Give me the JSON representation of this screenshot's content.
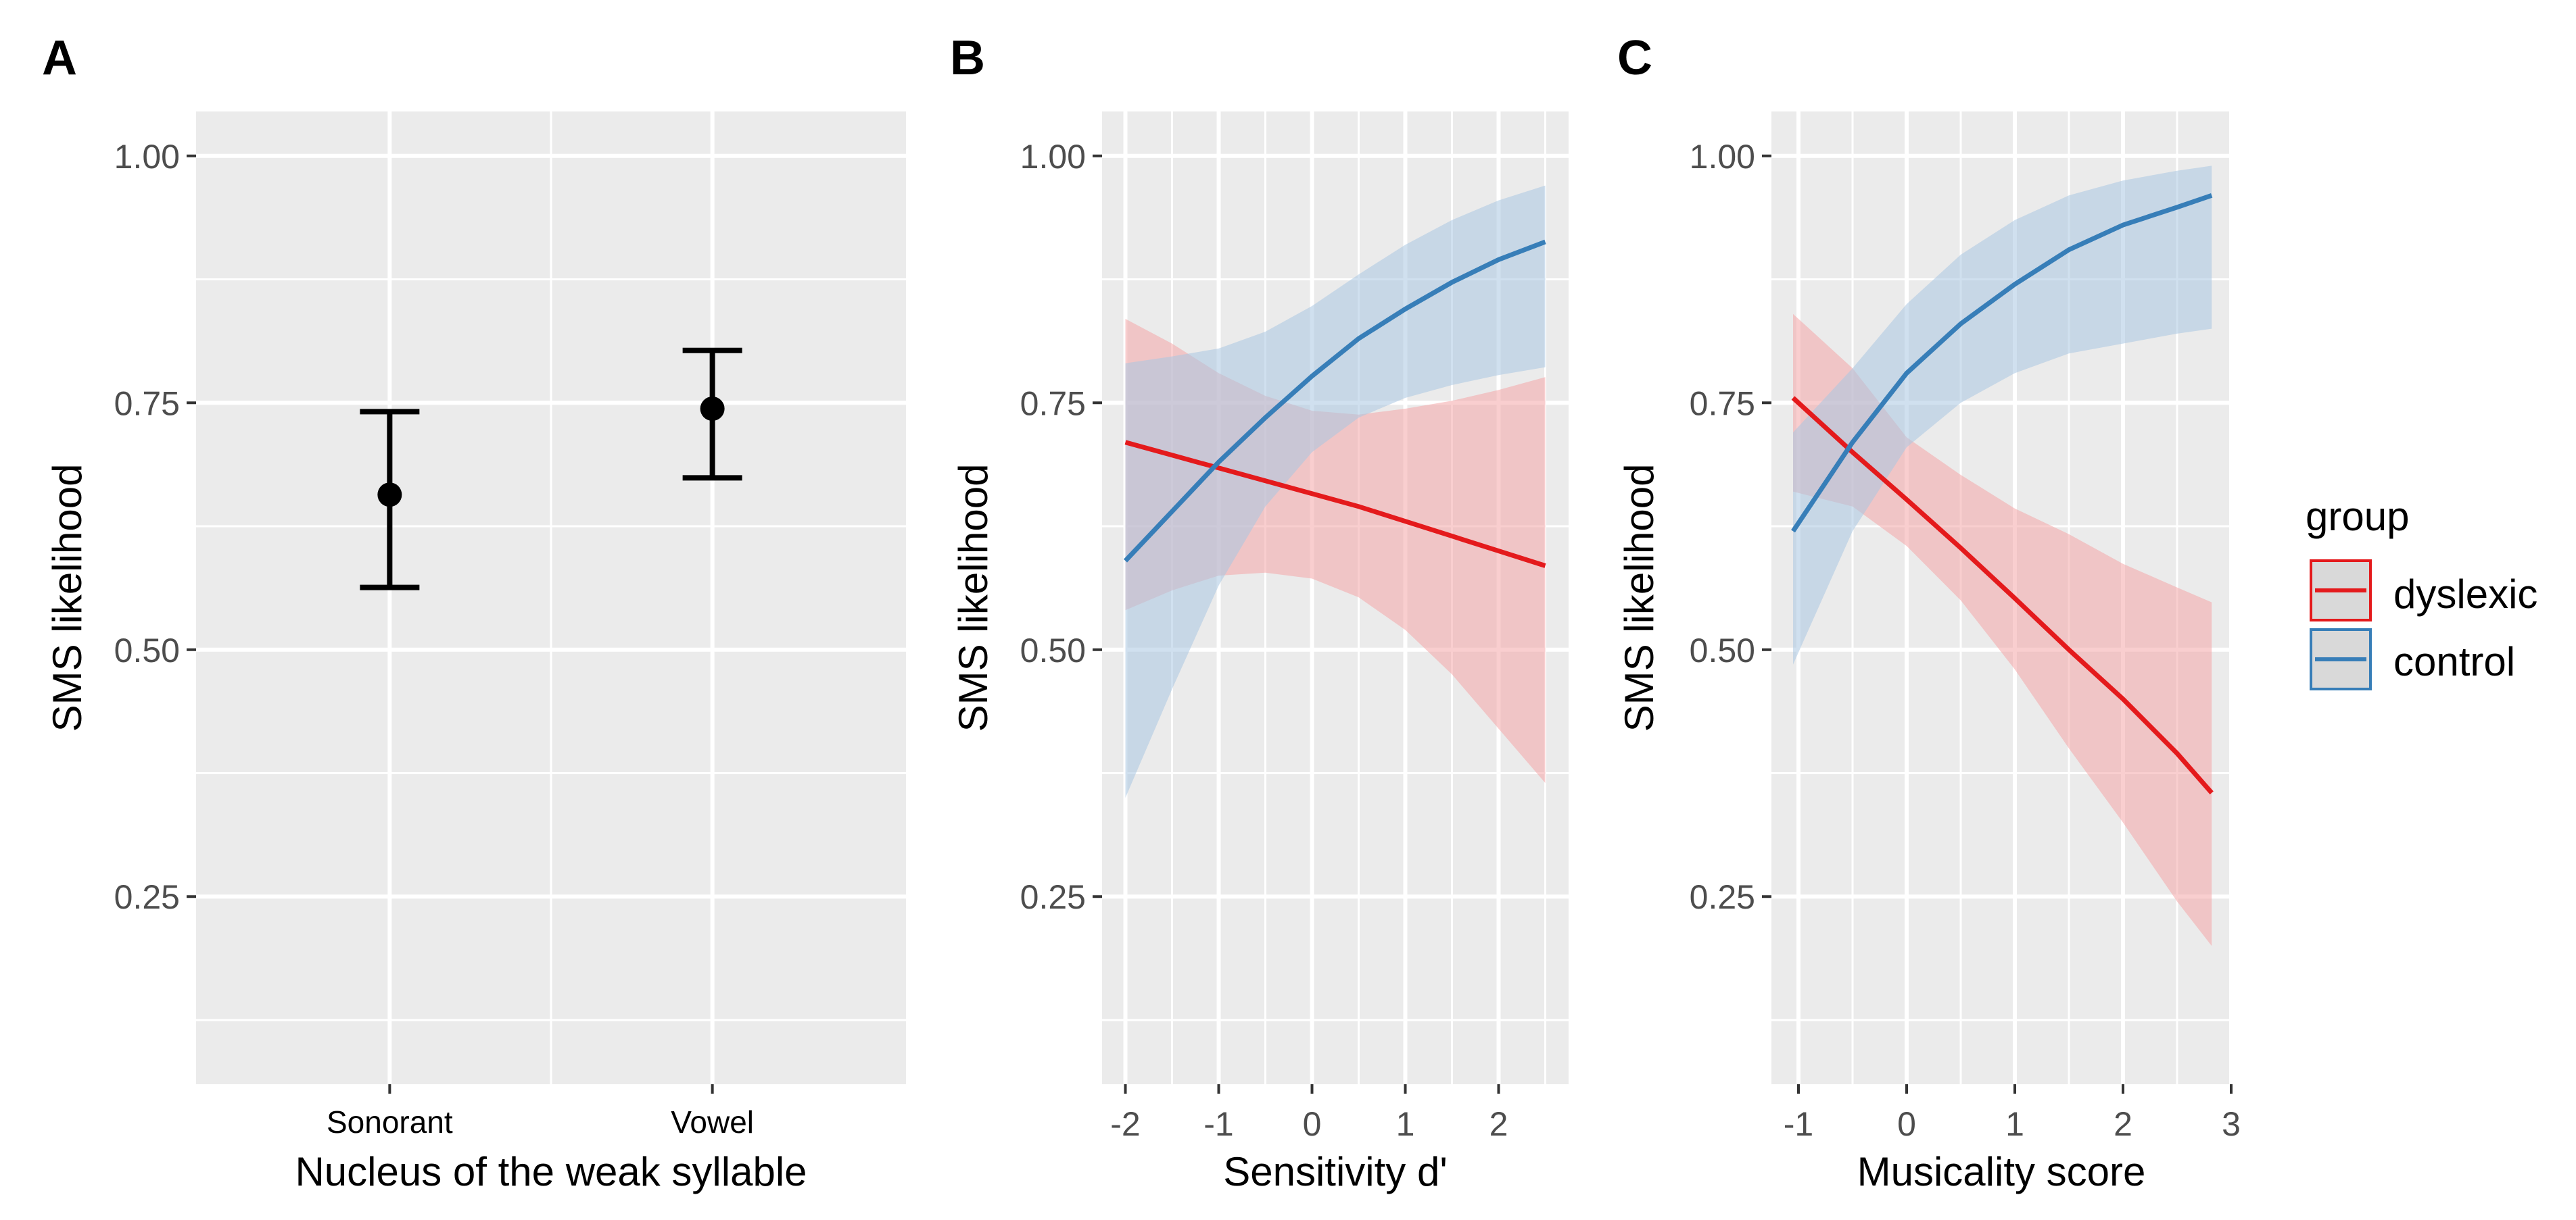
{
  "colors": {
    "panel_bg": "#EBEBEB",
    "grid": "#FFFFFF",
    "axis_text": "#4D4D4D",
    "title_text": "#000000",
    "dyslexic": "#E41A1C",
    "control": "#377EB8",
    "dyslexic_fill": "#F4A6A7",
    "control_fill": "#A9C6E1"
  },
  "legend": {
    "title": "group",
    "placement": "right",
    "entries": [
      {
        "label": "dyslexic",
        "series": "dyslexic"
      },
      {
        "label": "control",
        "series": "control"
      }
    ]
  },
  "chart_data": [
    {
      "panel_label": "A",
      "type": "scatter",
      "subtype": "point-with-errorbars",
      "xlabel": "Nucleus of the weak syllable",
      "ylabel": "SMS likelihood",
      "categories": [
        "Sonorant",
        "Vowel"
      ],
      "points": [
        {
          "category": "Sonorant",
          "y": 0.657,
          "ymin": 0.563,
          "ymax": 0.741
        },
        {
          "category": "Vowel",
          "y": 0.744,
          "ymin": 0.674,
          "ymax": 0.803
        }
      ],
      "ylim": [
        0.06,
        1.045
      ],
      "yticks": [
        0.25,
        0.5,
        0.75,
        1.0
      ],
      "ytick_labels": [
        "0.25",
        "0.50",
        "0.75",
        "1.00"
      ],
      "grid": true
    },
    {
      "panel_label": "B",
      "type": "line",
      "subtype": "line-with-ribbon",
      "xlabel": "Sensitivity d'",
      "ylabel": "SMS likelihood",
      "xlim": [
        -2.25,
        2.75
      ],
      "ylim": [
        0.06,
        1.045
      ],
      "xticks": [
        -2,
        -1,
        0,
        1,
        2
      ],
      "xtick_labels": [
        "-2",
        "-1",
        "0",
        "1",
        "2"
      ],
      "yticks": [
        0.25,
        0.5,
        0.75,
        1.0
      ],
      "ytick_labels": [
        "0.25",
        "0.50",
        "0.75",
        "1.00"
      ],
      "grid": true,
      "series": [
        {
          "name": "dyslexic",
          "x": [
            -2,
            -1.5,
            -1,
            -0.5,
            0,
            0.5,
            1,
            1.5,
            2,
            2.5
          ],
          "y": [
            0.71,
            0.697,
            0.684,
            0.671,
            0.658,
            0.645,
            0.63,
            0.615,
            0.6,
            0.585
          ],
          "ymin": [
            0.54,
            0.56,
            0.575,
            0.578,
            0.572,
            0.553,
            0.52,
            0.475,
            0.42,
            0.365
          ],
          "ymax": [
            0.835,
            0.81,
            0.78,
            0.757,
            0.742,
            0.738,
            0.744,
            0.752,
            0.763,
            0.776
          ]
        },
        {
          "name": "control",
          "x": [
            -2,
            -1.5,
            -1,
            -0.5,
            0,
            0.5,
            1,
            1.5,
            2,
            2.5
          ],
          "y": [
            0.59,
            0.64,
            0.69,
            0.735,
            0.777,
            0.815,
            0.845,
            0.872,
            0.895,
            0.913
          ],
          "ymin": [
            0.35,
            0.46,
            0.565,
            0.645,
            0.7,
            0.735,
            0.755,
            0.768,
            0.778,
            0.786
          ],
          "ymax": [
            0.79,
            0.797,
            0.805,
            0.822,
            0.848,
            0.88,
            0.91,
            0.935,
            0.955,
            0.97
          ]
        }
      ]
    },
    {
      "panel_label": "C",
      "type": "line",
      "subtype": "line-with-ribbon",
      "xlabel": "Musicality score",
      "ylabel": "SMS likelihood",
      "xlim": [
        -1.25,
        3.0
      ],
      "ylim": [
        0.06,
        1.045
      ],
      "xticks": [
        -1,
        0,
        1,
        2,
        3
      ],
      "xtick_labels": [
        "-1",
        "0",
        "1",
        "2",
        "3"
      ],
      "yticks": [
        0.25,
        0.5,
        0.75,
        1.0
      ],
      "ytick_labels": [
        "0.25",
        "0.50",
        "0.75",
        "1.00"
      ],
      "grid": true,
      "series": [
        {
          "name": "dyslexic",
          "x": [
            -1.05,
            -0.5,
            0,
            0.5,
            1,
            1.5,
            2,
            2.5,
            2.82
          ],
          "y": [
            0.755,
            0.7,
            0.652,
            0.603,
            0.552,
            0.5,
            0.45,
            0.395,
            0.355
          ],
          "ymin": [
            0.66,
            0.645,
            0.605,
            0.55,
            0.48,
            0.4,
            0.325,
            0.245,
            0.2
          ],
          "ymax": [
            0.84,
            0.785,
            0.715,
            0.677,
            0.643,
            0.617,
            0.587,
            0.563,
            0.548
          ]
        },
        {
          "name": "control",
          "x": [
            -1.05,
            -0.5,
            0,
            0.5,
            1,
            1.5,
            2,
            2.5,
            2.82
          ],
          "y": [
            0.62,
            0.71,
            0.78,
            0.83,
            0.87,
            0.905,
            0.93,
            0.948,
            0.96
          ],
          "ymin": [
            0.485,
            0.62,
            0.705,
            0.75,
            0.78,
            0.8,
            0.81,
            0.82,
            0.825
          ],
          "ymax": [
            0.72,
            0.785,
            0.85,
            0.9,
            0.935,
            0.96,
            0.975,
            0.985,
            0.99
          ]
        }
      ]
    }
  ]
}
